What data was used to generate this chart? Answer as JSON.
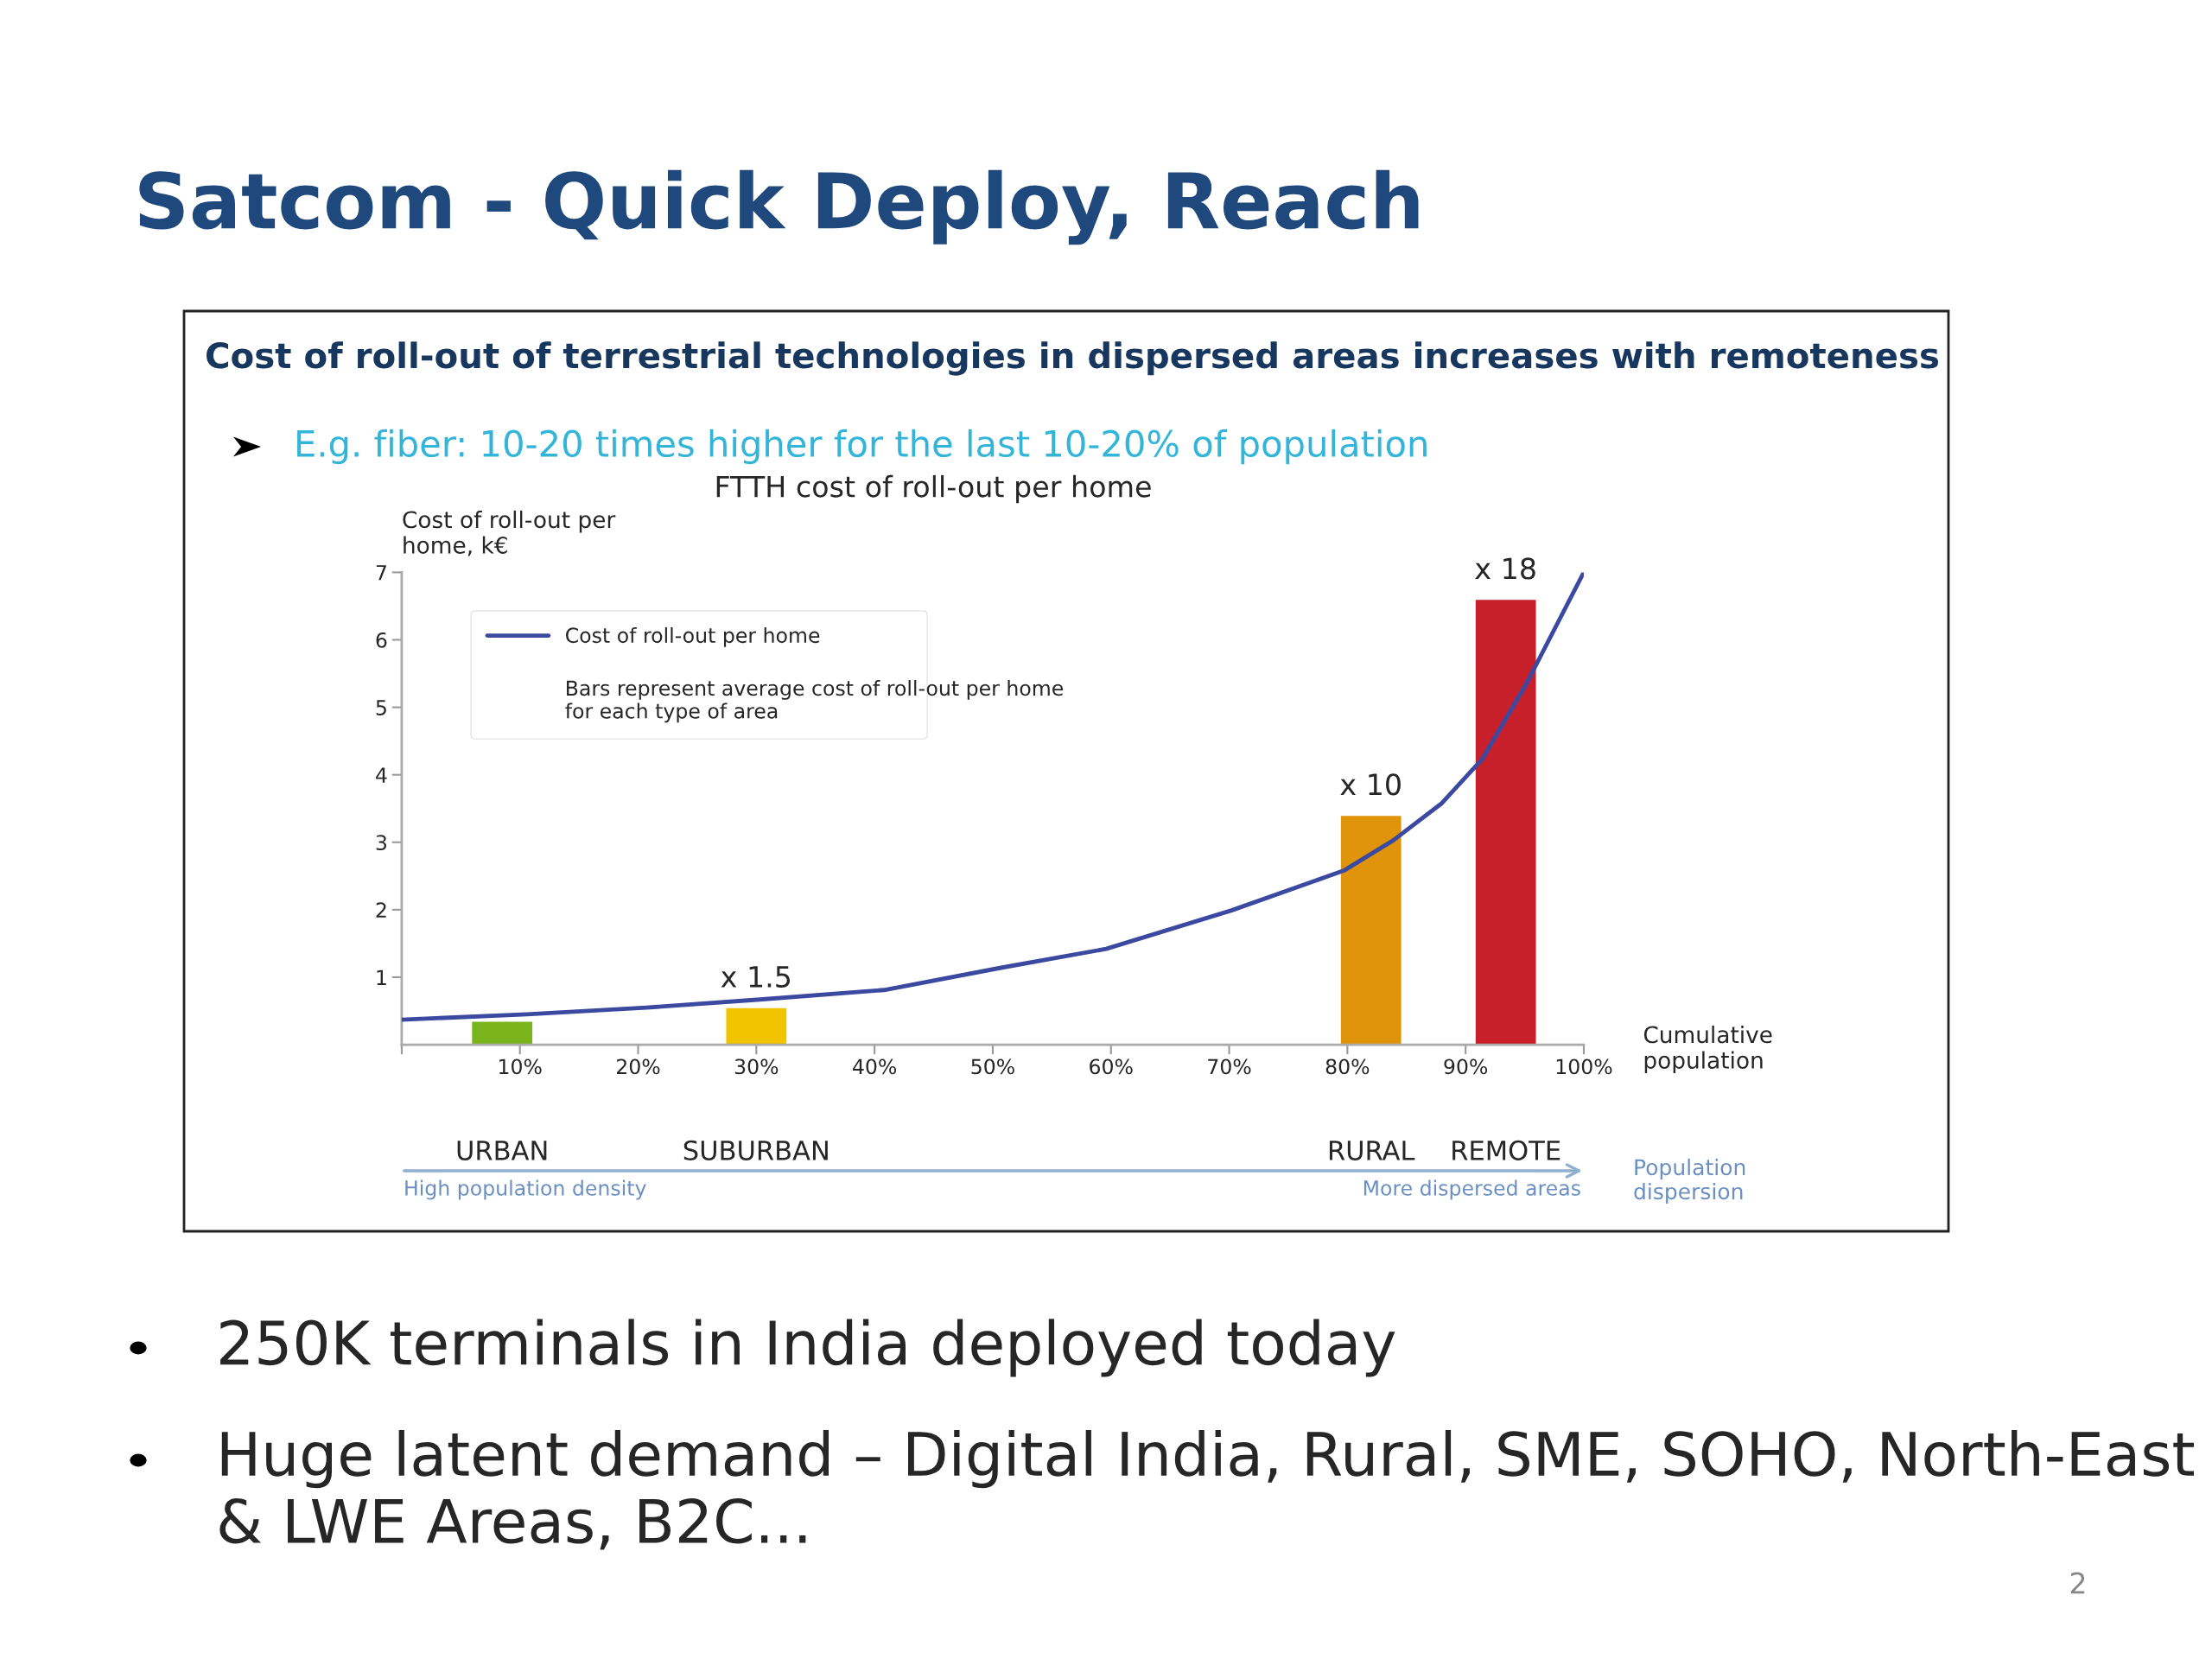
{
  "chart_data": {
    "type": "bar",
    "title": "Satcom - Quick Deploy, Reach",
    "subtitle": "Cost of roll-out of terrestrial technologies in dispersed areas increases with remoteness",
    "ylabel": "Cost of roll-out per home, k€",
    "xlabel": "Cumulative population",
    "annotations": [
      "E.g. fiber: 10-20 times higher for the last 10-20% of population",
      "FTTH cost of roll-out per home",
      "Bars represent average cost of roll-out per home for each type of area",
      "URBAN",
      "SUBURBAN",
      "RURAL",
      "REMOTE",
      "High population density",
      "More dispersed areas",
      "Population dispersion",
      "250K terminals in India deployed today",
      "Huge latent demand – Digital India, Rural, SME, SOHO, North-East & LWE Areas, B2C...",
      "2"
    ],
    "series": [
      {
        "x": [
          8.5,
          30,
          82,
          93.4
        ],
        "values": [
          0.35,
          0.55,
          3.4,
          6.6
        ],
        "colors": [
          "#7ab51d",
          "#f2c400",
          "#e0940c",
          "#c8202a"
        ],
        "value_labels": [
          null,
          "x 1.5",
          "x 10",
          "x 18"
        ]
      },
      {
        "type": "line",
        "name": "Cost of roll-out per home",
        "color": "#3b4aa0",
        "x": [
          0,
          10.6,
          20.7,
          30.3,
          40.8,
          50.7,
          59.6,
          70.2,
          79.7,
          83.9,
          88,
          91.4,
          95.2,
          100
        ],
        "values": [
          0.37,
          0.45,
          0.55,
          0.67,
          0.81,
          1.14,
          1.42,
          1.99,
          2.58,
          3.03,
          3.58,
          4.23,
          5.37,
          7.0
        ]
      }
    ],
    "xlim": [
      0,
      100
    ],
    "ylim": [
      0,
      7
    ],
    "xticks": [
      {
        "value": 0,
        "label": null
      },
      {
        "value": 10,
        "label": "10%"
      },
      {
        "value": 20,
        "label": "20%"
      },
      {
        "value": 30,
        "label": "30%"
      },
      {
        "value": 40,
        "label": "40%"
      },
      {
        "value": 50,
        "label": "50%"
      },
      {
        "value": 60,
        "label": "60%"
      },
      {
        "value": 70,
        "label": "70%"
      },
      {
        "value": 80,
        "label": "80%"
      },
      {
        "value": 90,
        "label": "90%"
      },
      {
        "value": 100,
        "label": "100%"
      }
    ],
    "yticks": [
      1,
      2,
      3,
      4,
      5,
      6,
      7
    ],
    "grid": false,
    "legend": "top left"
  }
}
